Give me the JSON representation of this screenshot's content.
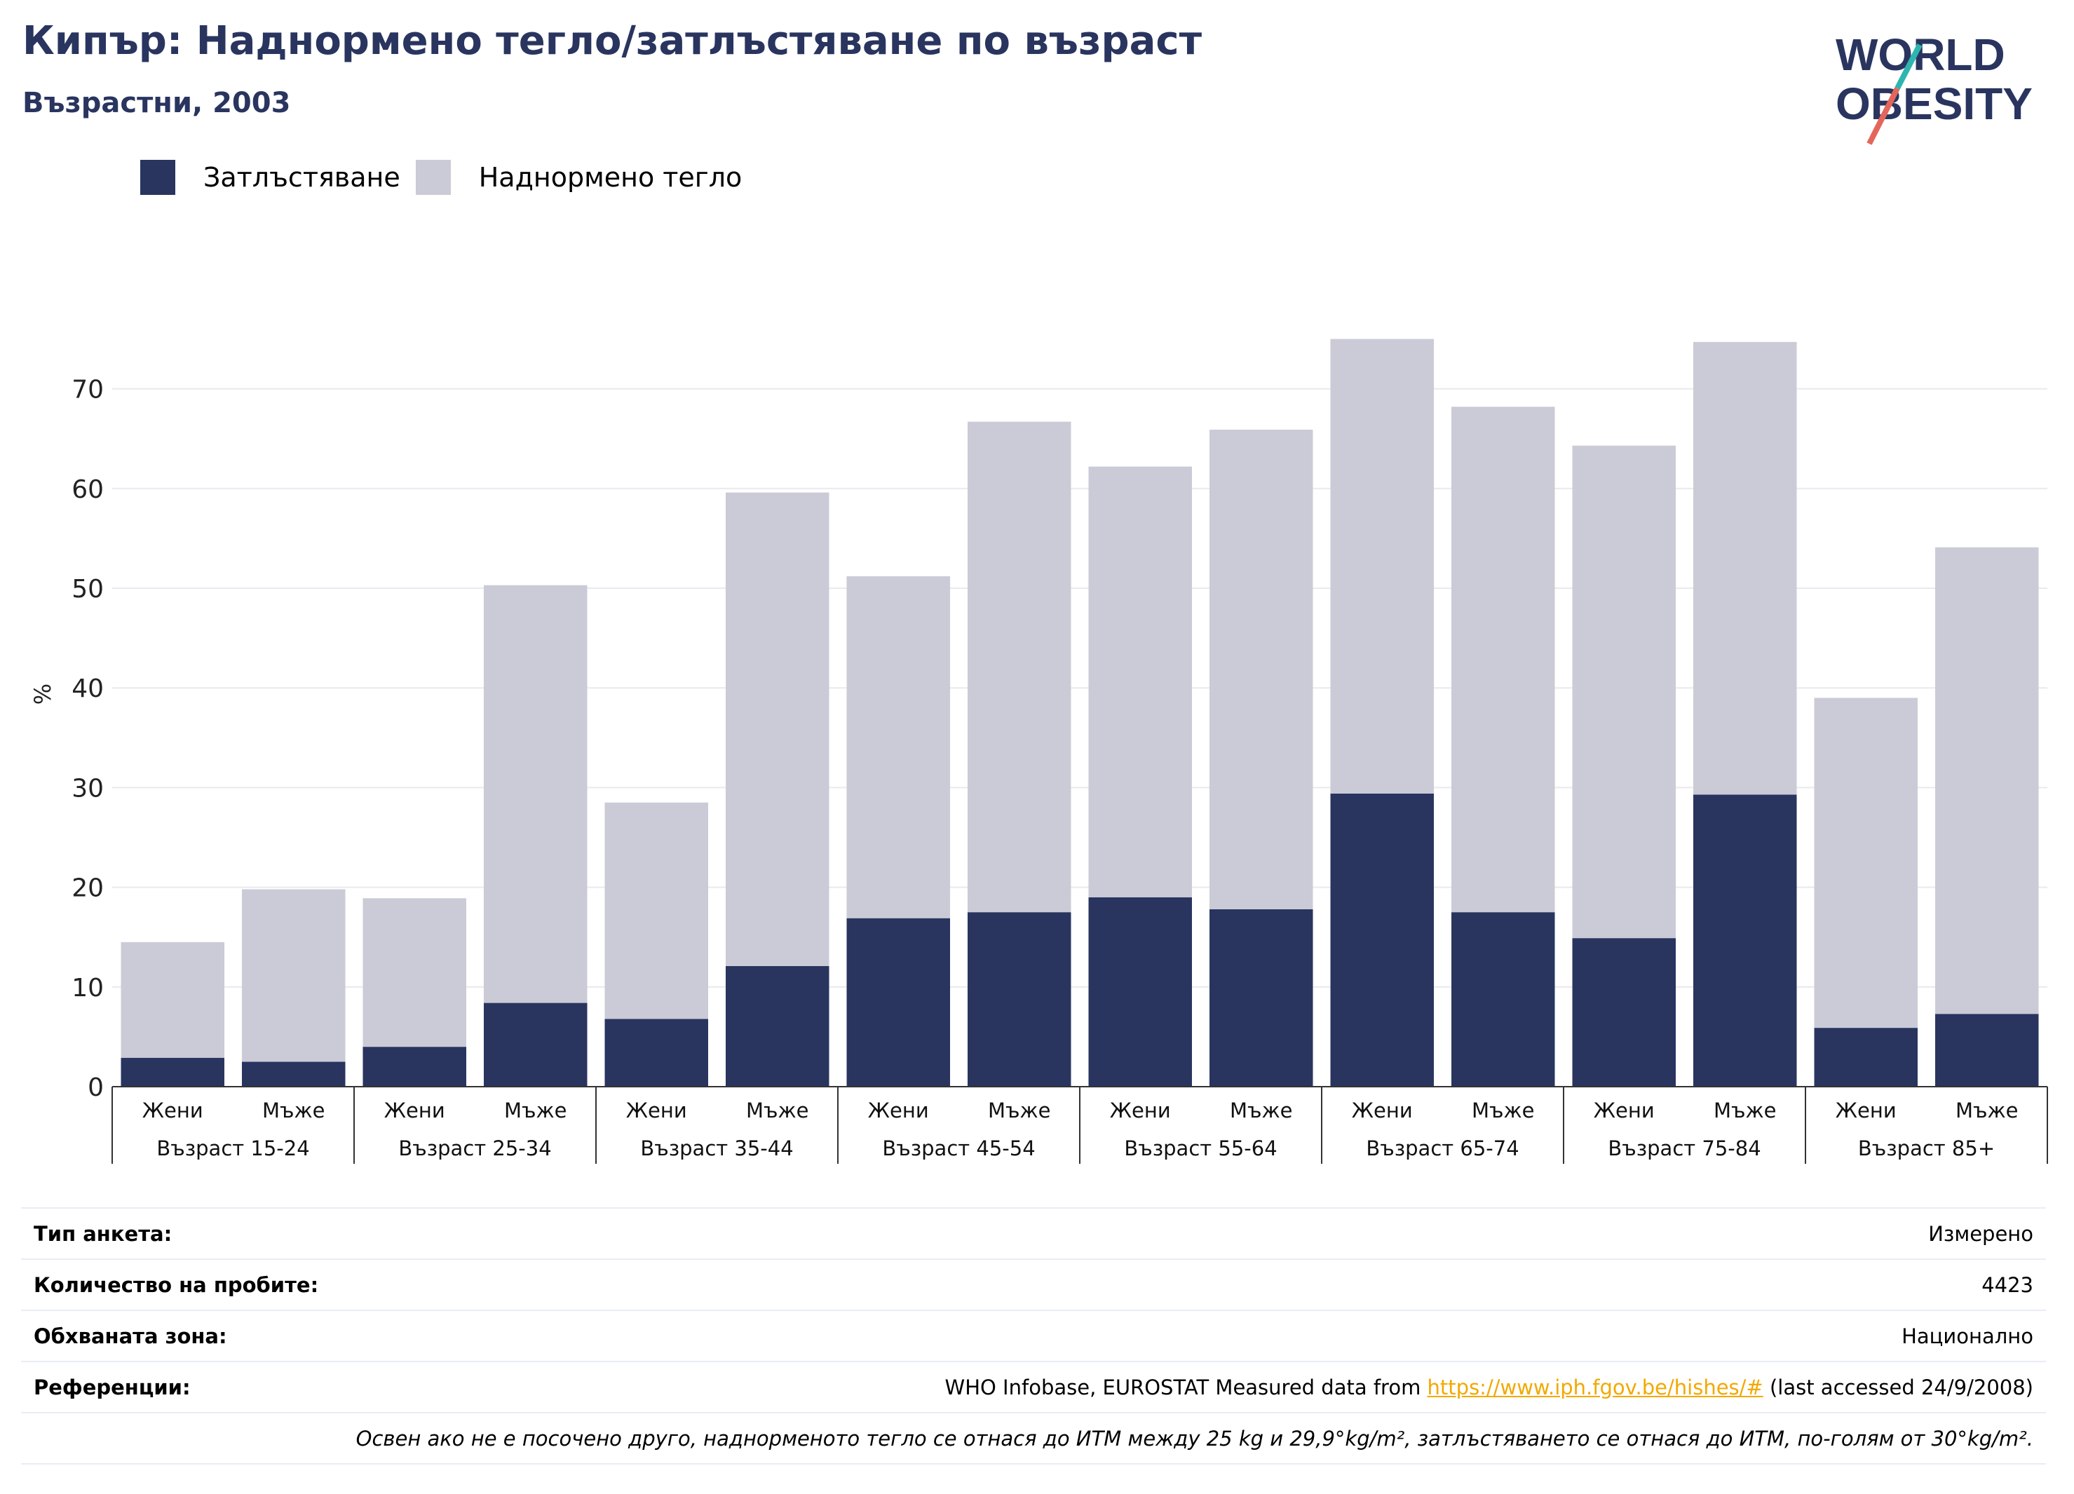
{
  "header": {
    "title": "Кипър: Наднормено тегло/затлъстяване по възраст",
    "subtitle": "Възрастни, 2003"
  },
  "logo": {
    "line1": "WORLD",
    "line2": "OBESITY"
  },
  "colors": {
    "obesity": "#29355f",
    "overweight": "#cacbd6",
    "text": "#29355f",
    "accent_red": "#e4665b",
    "accent_teal": "#2eb5b0"
  },
  "chart_data": {
    "type": "bar",
    "stacked": true,
    "ylabel": "%",
    "ylim": [
      0,
      75
    ],
    "yticks": [
      0,
      10,
      20,
      30,
      40,
      50,
      60,
      70
    ],
    "grid": true,
    "legend_position": "top-left",
    "groups": [
      "Възраст 15-24",
      "Възраст 25-34",
      "Възраст 35-44",
      "Възраст 45-54",
      "Възраст 55-64",
      "Възраст 65-74",
      "Възраст 75-84",
      "Възраст 85+"
    ],
    "categories": [
      "Жени",
      "Мъже",
      "Жени",
      "Мъже",
      "Жени",
      "Мъже",
      "Жени",
      "Мъже",
      "Жени",
      "Мъже",
      "Жени",
      "Мъже",
      "Жени",
      "Мъже",
      "Жени",
      "Мъже"
    ],
    "series": [
      {
        "name": "Затлъстяване",
        "color": "#29355f",
        "values": [
          2.9,
          2.5,
          4.0,
          8.4,
          6.8,
          12.1,
          16.9,
          17.5,
          19.0,
          17.8,
          29.4,
          17.5,
          14.9,
          29.3,
          5.9,
          7.3
        ]
      },
      {
        "name": "Наднормено тегло",
        "color": "#cacbd6",
        "values": [
          11.6,
          17.3,
          14.9,
          41.9,
          21.7,
          47.5,
          34.3,
          49.2,
          43.2,
          48.1,
          45.6,
          50.7,
          49.4,
          45.4,
          33.1,
          46.8
        ]
      }
    ]
  },
  "info": {
    "survey_type_label": "Тип анкета:",
    "survey_type_value": "Измерено",
    "sample_size_label": "Количество на пробите:",
    "sample_size_value": "4423",
    "area_label": "Обхваната зона:",
    "area_value": "Национално",
    "references_label": "Референции:",
    "references_prefix": "WHO Infobase, EUROSTAT Measured data from",
    "references_link": "https://www.iph.fgov.be/hishes/#",
    "references_suffix": "(last accessed 24/9/2008)",
    "note": "Освен ако не е посочено друго, наднорменото тегло се отнася до ИТМ между 25 kg и 29,9°kg/m², затлъстяването се отнася до ИТМ, по-голям от 30°kg/m²."
  }
}
